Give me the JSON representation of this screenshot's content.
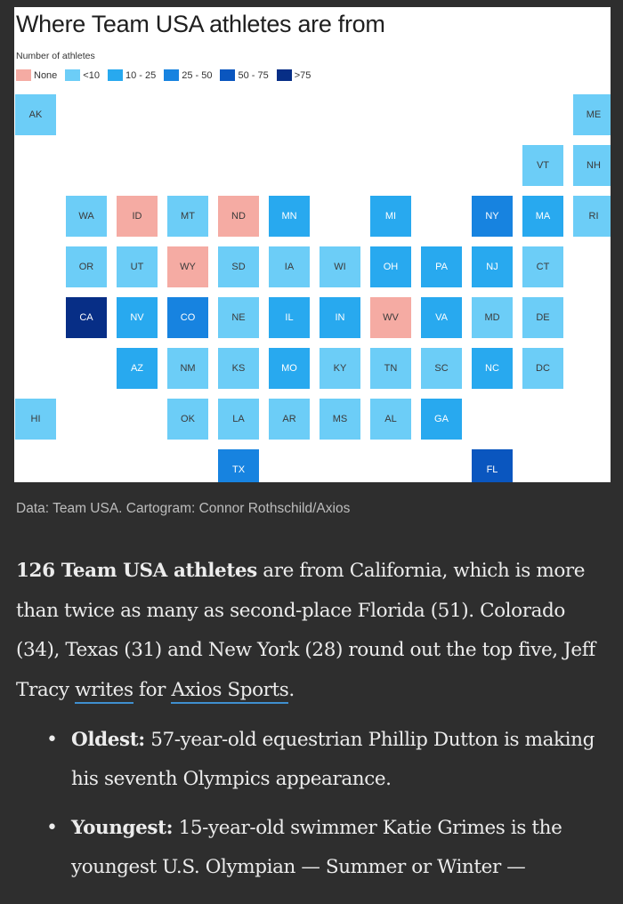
{
  "colors": {
    "None": "#f5aba3",
    "<10": "#6ccdf7",
    "10 - 25": "#28a9ef",
    "25 - 50": "#1783e0",
    "50 - 75": "#0a56bf",
    ">75": "#072e86"
  },
  "chart_data": {
    "type": "table",
    "title": "Where Team USA athletes are from",
    "legend_title": "Number of athletes",
    "legend": [
      "None",
      "<10",
      "10 - 25",
      "25 - 50",
      "50 - 75",
      ">75"
    ],
    "states": [
      {
        "state": "AK",
        "bin": "<10",
        "row": 0,
        "col": 0
      },
      {
        "state": "ME",
        "bin": "<10",
        "row": 0,
        "col": 11
      },
      {
        "state": "VT",
        "bin": "<10",
        "row": 1,
        "col": 10
      },
      {
        "state": "NH",
        "bin": "<10",
        "row": 1,
        "col": 11
      },
      {
        "state": "WA",
        "bin": "<10",
        "row": 2,
        "col": 1
      },
      {
        "state": "ID",
        "bin": "None",
        "row": 2,
        "col": 2
      },
      {
        "state": "MT",
        "bin": "<10",
        "row": 2,
        "col": 3
      },
      {
        "state": "ND",
        "bin": "None",
        "row": 2,
        "col": 4
      },
      {
        "state": "MN",
        "bin": "10 - 25",
        "row": 2,
        "col": 5
      },
      {
        "state": "MI",
        "bin": "10 - 25",
        "row": 2,
        "col": 7
      },
      {
        "state": "NY",
        "bin": "25 - 50",
        "row": 2,
        "col": 9
      },
      {
        "state": "MA",
        "bin": "10 - 25",
        "row": 2,
        "col": 10
      },
      {
        "state": "RI",
        "bin": "<10",
        "row": 2,
        "col": 11
      },
      {
        "state": "OR",
        "bin": "<10",
        "row": 3,
        "col": 1
      },
      {
        "state": "UT",
        "bin": "<10",
        "row": 3,
        "col": 2
      },
      {
        "state": "WY",
        "bin": "None",
        "row": 3,
        "col": 3
      },
      {
        "state": "SD",
        "bin": "<10",
        "row": 3,
        "col": 4
      },
      {
        "state": "IA",
        "bin": "<10",
        "row": 3,
        "col": 5
      },
      {
        "state": "WI",
        "bin": "<10",
        "row": 3,
        "col": 6
      },
      {
        "state": "OH",
        "bin": "10 - 25",
        "row": 3,
        "col": 7
      },
      {
        "state": "PA",
        "bin": "10 - 25",
        "row": 3,
        "col": 8
      },
      {
        "state": "NJ",
        "bin": "10 - 25",
        "row": 3,
        "col": 9
      },
      {
        "state": "CT",
        "bin": "<10",
        "row": 3,
        "col": 10
      },
      {
        "state": "CA",
        "bin": ">75",
        "row": 4,
        "col": 1
      },
      {
        "state": "NV",
        "bin": "10 - 25",
        "row": 4,
        "col": 2
      },
      {
        "state": "CO",
        "bin": "25 - 50",
        "row": 4,
        "col": 3
      },
      {
        "state": "NE",
        "bin": "<10",
        "row": 4,
        "col": 4
      },
      {
        "state": "IL",
        "bin": "10 - 25",
        "row": 4,
        "col": 5
      },
      {
        "state": "IN",
        "bin": "10 - 25",
        "row": 4,
        "col": 6
      },
      {
        "state": "WV",
        "bin": "None",
        "row": 4,
        "col": 7
      },
      {
        "state": "VA",
        "bin": "10 - 25",
        "row": 4,
        "col": 8
      },
      {
        "state": "MD",
        "bin": "<10",
        "row": 4,
        "col": 9
      },
      {
        "state": "DE",
        "bin": "<10",
        "row": 4,
        "col": 10
      },
      {
        "state": "AZ",
        "bin": "10 - 25",
        "row": 5,
        "col": 2
      },
      {
        "state": "NM",
        "bin": "<10",
        "row": 5,
        "col": 3
      },
      {
        "state": "KS",
        "bin": "<10",
        "row": 5,
        "col": 4
      },
      {
        "state": "MO",
        "bin": "10 - 25",
        "row": 5,
        "col": 5
      },
      {
        "state": "KY",
        "bin": "<10",
        "row": 5,
        "col": 6
      },
      {
        "state": "TN",
        "bin": "<10",
        "row": 5,
        "col": 7
      },
      {
        "state": "SC",
        "bin": "<10",
        "row": 5,
        "col": 8
      },
      {
        "state": "NC",
        "bin": "10 - 25",
        "row": 5,
        "col": 9
      },
      {
        "state": "DC",
        "bin": "<10",
        "row": 5,
        "col": 10
      },
      {
        "state": "HI",
        "bin": "<10",
        "row": 6,
        "col": 0
      },
      {
        "state": "OK",
        "bin": "<10",
        "row": 6,
        "col": 3
      },
      {
        "state": "LA",
        "bin": "<10",
        "row": 6,
        "col": 4
      },
      {
        "state": "AR",
        "bin": "<10",
        "row": 6,
        "col": 5
      },
      {
        "state": "MS",
        "bin": "<10",
        "row": 6,
        "col": 6
      },
      {
        "state": "AL",
        "bin": "<10",
        "row": 6,
        "col": 7
      },
      {
        "state": "GA",
        "bin": "10 - 25",
        "row": 6,
        "col": 8
      },
      {
        "state": "TX",
        "bin": "25 - 50",
        "row": 7,
        "col": 4
      },
      {
        "state": "FL",
        "bin": "50 - 75",
        "row": 7,
        "col": 9
      }
    ]
  },
  "source": "Data: Team USA. Cartogram: Connor Rothschild/Axios",
  "article": {
    "intro_bold": "126 Team USA athletes",
    "intro_text": " are from California, which is more than twice as many as second-place Florida (51). Colorado (34), Texas (31) and New York (28) round out the top five, Jeff Tracy ",
    "link1": "writes",
    "between": " for ",
    "link2": "Axios Sports",
    "end": ".",
    "bullets": [
      {
        "label": "Oldest:",
        "text": " 57-year-old equestrian Phillip Dutton is making his seventh Olympics appearance."
      },
      {
        "label": "Youngest:",
        "text": " 15-year-old swimmer Katie Grimes is the youngest U.S. Olympian — Summer or Winter —"
      }
    ]
  }
}
